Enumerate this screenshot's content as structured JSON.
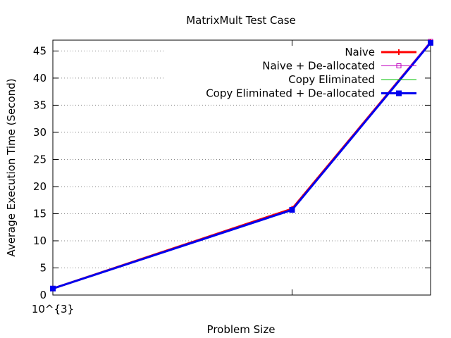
{
  "chart_data": {
    "type": "line",
    "title": "MatrixMult Test Case",
    "xlabel": "Problem Size",
    "ylabel": "Average Execution Time (Second)",
    "x_tick_labels": [
      {
        "x": 1000,
        "label": "10^{3}"
      }
    ],
    "x_range": [
      1000,
      2500
    ],
    "ylim": [
      0,
      47
    ],
    "y_ticks": [
      0,
      5,
      10,
      15,
      20,
      25,
      30,
      35,
      40,
      45
    ],
    "grid": true,
    "legend_position": "top-right",
    "x": [
      1000,
      1950,
      2500
    ],
    "series": [
      {
        "name": "Naive",
        "values": [
          1.2,
          15.9,
          46.6
        ],
        "color": "#ff0000",
        "marker": "plus"
      },
      {
        "name": "Naive + De-allocated",
        "values": [
          1.2,
          15.8,
          46.8
        ],
        "color": "#c000c0",
        "marker": "square-open"
      },
      {
        "name": "Copy Eliminated",
        "values": [
          1.2,
          15.7,
          46.5
        ],
        "color": "#00c000",
        "marker": "none"
      },
      {
        "name": "Copy Eliminated + De-allocated",
        "values": [
          1.2,
          15.7,
          46.5
        ],
        "color": "#0000ee",
        "marker": "square-filled"
      }
    ]
  }
}
